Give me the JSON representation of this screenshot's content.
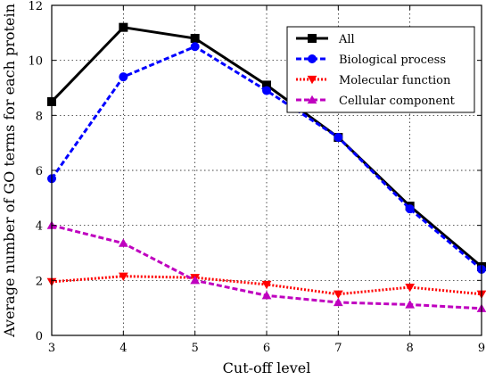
{
  "chart_data": {
    "type": "line",
    "title": "",
    "xlabel": "Cut-off level",
    "ylabel": "Average number of GO terms for each protein",
    "xlim": [
      3,
      9
    ],
    "ylim": [
      0,
      12
    ],
    "x_ticks": [
      3,
      4,
      5,
      6,
      7,
      8,
      9
    ],
    "y_ticks": [
      0,
      2,
      4,
      6,
      8,
      10,
      12
    ],
    "grid": true,
    "legend_position": "top-right",
    "x": [
      3,
      4,
      5,
      6,
      7,
      8,
      9
    ],
    "series": [
      {
        "name": "All",
        "values": [
          8.5,
          11.2,
          10.8,
          9.1,
          7.2,
          4.7,
          2.5
        ],
        "color": "#000000",
        "marker": "square",
        "line_style": "solid"
      },
      {
        "name": "Biological process",
        "values": [
          5.7,
          9.4,
          10.5,
          8.9,
          7.2,
          4.6,
          2.4
        ],
        "color": "#0000ff",
        "marker": "circle",
        "line_style": "dashed"
      },
      {
        "name": "Molecular function",
        "values": [
          1.95,
          2.15,
          2.1,
          1.85,
          1.5,
          1.75,
          1.5
        ],
        "color": "#ff0000",
        "marker": "triangle-down",
        "line_style": "dotted"
      },
      {
        "name": "Cellular component",
        "values": [
          4.0,
          3.35,
          2.0,
          1.45,
          1.2,
          1.12,
          0.98
        ],
        "color": "#bf00bf",
        "marker": "triangle-up",
        "line_style": "dashed"
      }
    ]
  }
}
